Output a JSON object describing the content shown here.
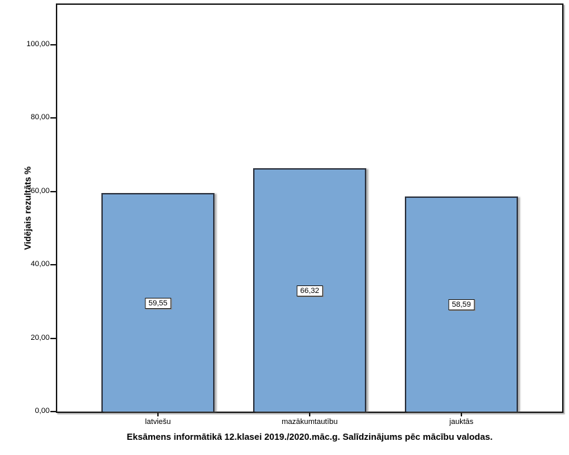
{
  "chart_data": {
    "type": "bar",
    "title": "Eksāmens informātikā 12.klasei 2019./2020.māc.g. Salīdzinājums pēc mācību valodas.",
    "ylabel": "Vidējais rezultāts %",
    "xlabel": "",
    "categories": [
      "latviešu",
      "mazākumtautību",
      "jauktās"
    ],
    "values": [
      59.55,
      66.32,
      58.59
    ],
    "value_labels": [
      "59,55",
      "66,32",
      "58,59"
    ],
    "yticks": [
      0,
      20,
      40,
      60,
      80,
      100
    ],
    "ytick_labels": [
      "0,00",
      "20,00",
      "40,00",
      "60,00",
      "80,00",
      "100,00"
    ],
    "ylim": [
      0,
      111.7
    ],
    "grid": false,
    "legend": "none",
    "bar_fill_color": "#7AA7D5",
    "bar_border_color": "#2E3440",
    "frame_color": "#1A1A1A",
    "background_color": "#FFFFFF"
  }
}
